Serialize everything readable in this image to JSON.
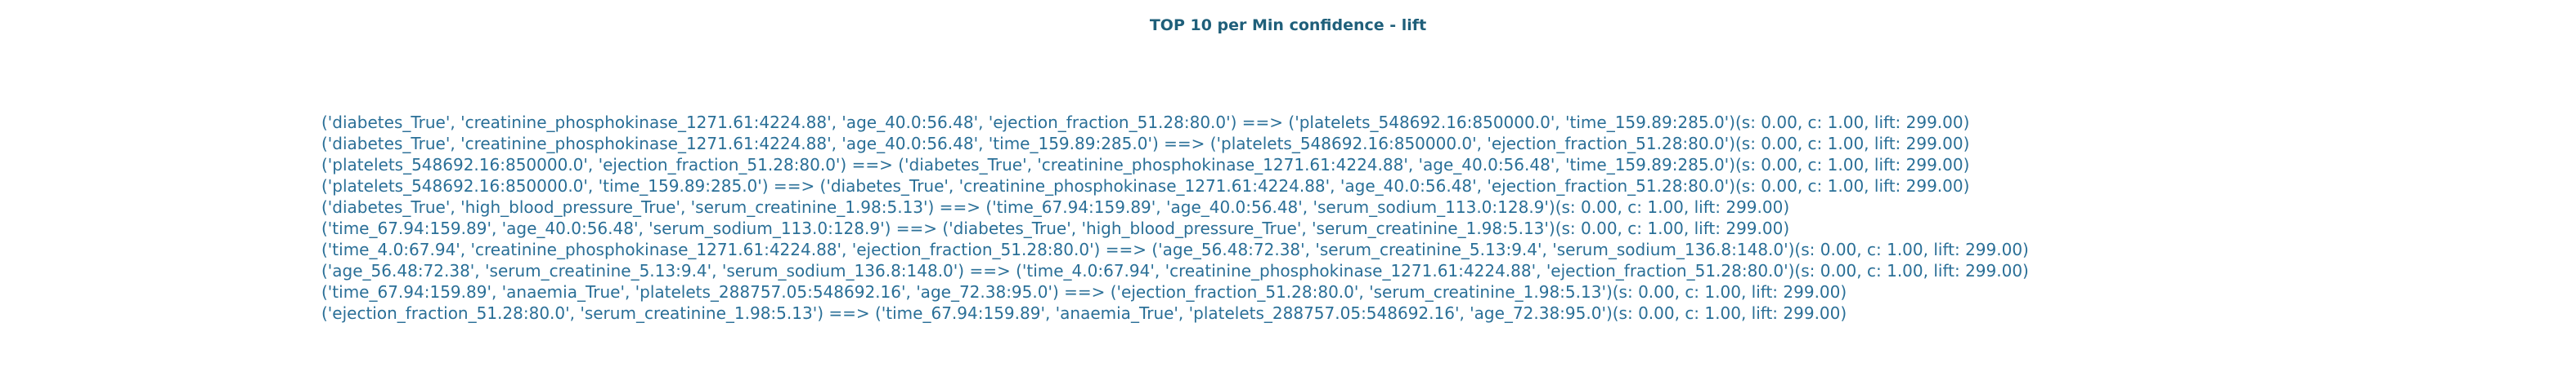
{
  "chart_data": {
    "type": "table",
    "title": "TOP 10 per Min confidence - lift",
    "rows": [
      "('diabetes_True', 'creatinine_phosphokinase_1271.61:4224.88', 'age_40.0:56.48', 'ejection_fraction_51.28:80.0') ==> ('platelets_548692.16:850000.0', 'time_159.89:285.0')(s: 0.00, c: 1.00, lift: 299.00)",
      "('diabetes_True', 'creatinine_phosphokinase_1271.61:4224.88', 'age_40.0:56.48', 'time_159.89:285.0') ==> ('platelets_548692.16:850000.0', 'ejection_fraction_51.28:80.0')(s: 0.00, c: 1.00, lift: 299.00)",
      "('platelets_548692.16:850000.0', 'ejection_fraction_51.28:80.0') ==> ('diabetes_True', 'creatinine_phosphokinase_1271.61:4224.88', 'age_40.0:56.48', 'time_159.89:285.0')(s: 0.00, c: 1.00, lift: 299.00)",
      "('platelets_548692.16:850000.0', 'time_159.89:285.0') ==> ('diabetes_True', 'creatinine_phosphokinase_1271.61:4224.88', 'age_40.0:56.48', 'ejection_fraction_51.28:80.0')(s: 0.00, c: 1.00, lift: 299.00)",
      "('diabetes_True', 'high_blood_pressure_True', 'serum_creatinine_1.98:5.13') ==> ('time_67.94:159.89', 'age_40.0:56.48', 'serum_sodium_113.0:128.9')(s: 0.00, c: 1.00, lift: 299.00)",
      "('time_67.94:159.89', 'age_40.0:56.48', 'serum_sodium_113.0:128.9') ==> ('diabetes_True', 'high_blood_pressure_True', 'serum_creatinine_1.98:5.13')(s: 0.00, c: 1.00, lift: 299.00)",
      "('time_4.0:67.94', 'creatinine_phosphokinase_1271.61:4224.88', 'ejection_fraction_51.28:80.0') ==> ('age_56.48:72.38', 'serum_creatinine_5.13:9.4', 'serum_sodium_136.8:148.0')(s: 0.00, c: 1.00, lift: 299.00)",
      "('age_56.48:72.38', 'serum_creatinine_5.13:9.4', 'serum_sodium_136.8:148.0') ==> ('time_4.0:67.94', 'creatinine_phosphokinase_1271.61:4224.88', 'ejection_fraction_51.28:80.0')(s: 0.00, c: 1.00, lift: 299.00)",
      "('time_67.94:159.89', 'anaemia_True', 'platelets_288757.05:548692.16', 'age_72.38:95.0') ==> ('ejection_fraction_51.28:80.0', 'serum_creatinine_1.98:5.13')(s: 0.00, c: 1.00, lift: 299.00)",
      "('ejection_fraction_51.28:80.0', 'serum_creatinine_1.98:5.13') ==> ('time_67.94:159.89', 'anaemia_True', 'platelets_288757.05:548692.16', 'age_72.38:95.0')(s: 0.00, c: 1.00, lift: 299.00)"
    ]
  },
  "colors": {
    "title": "#1f5f7a",
    "text": "#2a6f97",
    "background": "#ffffff"
  }
}
